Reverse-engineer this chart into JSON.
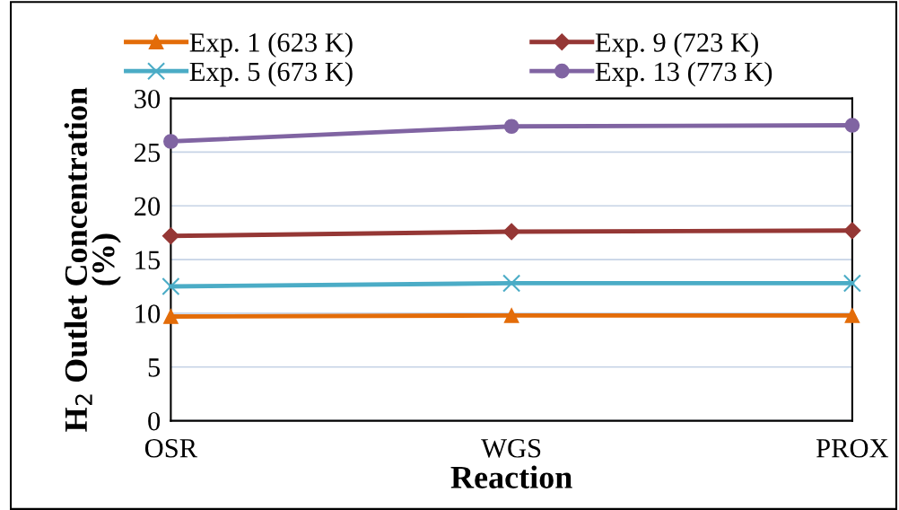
{
  "chart_data": {
    "type": "line",
    "xlabel": "Reaction",
    "ylabel": "H$_{2}$ Outlet Concentration\n(%)",
    "categories": [
      "OSR",
      "WGS",
      "PROX"
    ],
    "series": [
      {
        "name": "Exp. 1 (623 K)",
        "color": "#e36c09",
        "marker": "triangle",
        "values": [
          9.7,
          9.8,
          9.8
        ]
      },
      {
        "name": "Exp. 5 (673 K)",
        "color": "#4bacc6",
        "marker": "cross",
        "values": [
          12.5,
          12.8,
          12.8
        ]
      },
      {
        "name": "Exp. 9 (723 K)",
        "color": "#953735",
        "marker": "diamond",
        "values": [
          17.2,
          17.6,
          17.7
        ]
      },
      {
        "name": "Exp. 13 (773 K)",
        "color": "#8064a2",
        "marker": "circle",
        "values": [
          26.0,
          27.4,
          27.5
        ]
      }
    ],
    "ylim": [
      0,
      30
    ],
    "yticks": [
      0,
      5,
      10,
      15,
      20,
      25,
      30
    ],
    "grid": "y",
    "legend": "top",
    "line_style": "solid"
  }
}
